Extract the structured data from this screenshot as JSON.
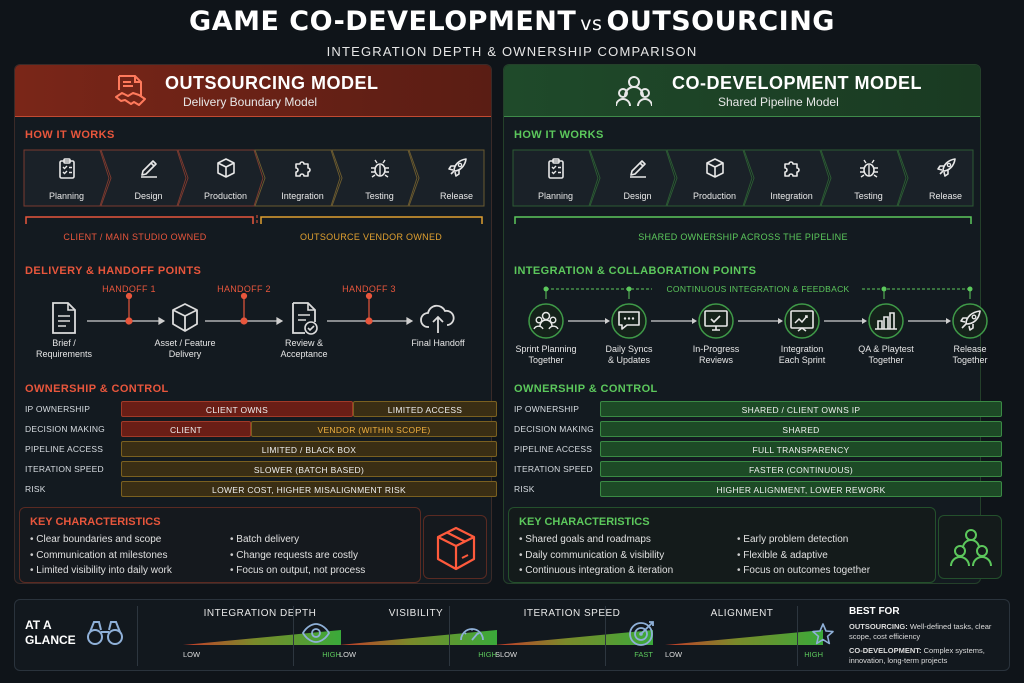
{
  "title": {
    "part1": "GAME CO-DEVELOPMENT",
    "vs": "vs",
    "part2": "OUTSOURCING"
  },
  "subtitle": "INTEGRATION DEPTH & OWNERSHIP COMPARISON",
  "colors": {
    "accent_red": "#e8563c",
    "accent_green": "#5cc85c",
    "accent_orange": "#e0a030",
    "bg": "#0f1419"
  },
  "left": {
    "title": "OUTSOURCING MODEL",
    "subtitle": "Delivery Boundary Model",
    "icon": "handshake-document-icon",
    "how_it_works": "HOW IT WORKS",
    "stages": [
      {
        "label": "Planning",
        "icon": "clipboard-icon"
      },
      {
        "label": "Design",
        "icon": "pencil-icon"
      },
      {
        "label": "Production",
        "icon": "cube-icon"
      },
      {
        "label": "Integration",
        "icon": "puzzle-icon"
      },
      {
        "label": "Testing",
        "icon": "bug-icon"
      },
      {
        "label": "Release",
        "icon": "rocket-icon"
      }
    ],
    "owner_client": "CLIENT / MAIN STUDIO OWNED",
    "owner_vendor": "OUTSOURCE VENDOR OWNED",
    "handoff_title": "DELIVERY & HANDOFF POINTS",
    "handoffs": [
      "HANDOFF 1",
      "HANDOFF 2",
      "HANDOFF 3"
    ],
    "handoff_nodes": [
      {
        "line1": "Brief /",
        "line2": "Requirements",
        "icon": "document-icon"
      },
      {
        "line1": "Asset / Feature",
        "line2": "Delivery",
        "icon": "cube-icon"
      },
      {
        "line1": "Review &",
        "line2": "Acceptance",
        "icon": "document-check-icon"
      },
      {
        "line1": "Final Handoff",
        "line2": "",
        "icon": "cloud-upload-icon"
      }
    ],
    "ownership_title": "OWNERSHIP & CONTROL",
    "ownership": [
      {
        "key": "IP OWNERSHIP",
        "a": "CLIENT OWNS",
        "b": "LIMITED ACCESS"
      },
      {
        "key": "DECISION MAKING",
        "a": "CLIENT",
        "b": "VENDOR (WITHIN SCOPE)"
      },
      {
        "key": "PIPELINE ACCESS",
        "a": "LIMITED / BLACK BOX",
        "b": ""
      },
      {
        "key": "ITERATION SPEED",
        "a": "SLOWER (BATCH BASED)",
        "b": ""
      },
      {
        "key": "RISK",
        "a": "LOWER COST, HIGHER MISALIGNMENT RISK",
        "b": ""
      }
    ],
    "key_title": "KEY CHARACTERISTICS",
    "key_col1": [
      "Clear boundaries and scope",
      "Communication at milestones",
      "Limited visibility into daily work"
    ],
    "key_col2": [
      "Batch delivery",
      "Change requests are costly",
      "Focus on output, not process"
    ],
    "key_icon": "box-icon"
  },
  "right": {
    "title": "CO-DEVELOPMENT MODEL",
    "subtitle": "Shared Pipeline Model",
    "icon": "team-icon",
    "how_it_works": "HOW IT WORKS",
    "stages": [
      {
        "label": "Planning",
        "icon": "clipboard-icon"
      },
      {
        "label": "Design",
        "icon": "pencil-icon"
      },
      {
        "label": "Production",
        "icon": "cube-icon"
      },
      {
        "label": "Integration",
        "icon": "puzzle-icon"
      },
      {
        "label": "Testing",
        "icon": "bug-icon"
      },
      {
        "label": "Release",
        "icon": "rocket-icon"
      }
    ],
    "owner_shared": "SHARED OWNERSHIP ACROSS THE PIPELINE",
    "collab_title": "INTEGRATION & COLLABORATION POINTS",
    "continuous": "CONTINUOUS INTEGRATION & FEEDBACK",
    "collab_nodes": [
      {
        "line1": "Sprint Planning",
        "line2": "Together",
        "icon": "team-icon"
      },
      {
        "line1": "Daily Syncs",
        "line2": "& Updates",
        "icon": "chat-icon"
      },
      {
        "line1": "In-Progress",
        "line2": "Reviews",
        "icon": "monitor-check-icon"
      },
      {
        "line1": "Integration",
        "line2": "Each Sprint",
        "icon": "board-icon"
      },
      {
        "line1": "QA & Playtest",
        "line2": "Together",
        "icon": "chart-icon"
      },
      {
        "line1": "Release",
        "line2": "Together",
        "icon": "rocket-icon"
      }
    ],
    "ownership_title": "OWNERSHIP & CONTROL",
    "ownership": [
      {
        "key": "IP OWNERSHIP",
        "a": "SHARED / CLIENT OWNS IP"
      },
      {
        "key": "DECISION MAKING",
        "a": "SHARED"
      },
      {
        "key": "PIPELINE ACCESS",
        "a": "FULL TRANSPARENCY"
      },
      {
        "key": "ITERATION SPEED",
        "a": "FASTER (CONTINUOUS)"
      },
      {
        "key": "RISK",
        "a": "HIGHER ALIGNMENT, LOWER REWORK"
      }
    ],
    "key_title": "KEY CHARACTERISTICS",
    "key_col1": [
      "Shared goals and roadmaps",
      "Daily communication & visibility",
      "Continuous integration & iteration"
    ],
    "key_col2": [
      "Early problem detection",
      "Flexible & adaptive",
      "Focus on outcomes together"
    ],
    "key_icon": "team-icon"
  },
  "glance": {
    "title_line1": "AT A",
    "title_line2": "GLANCE",
    "icon": "binoculars-icon",
    "metrics": [
      {
        "title": "INTEGRATION DEPTH",
        "low": "LOW",
        "high": "HIGH",
        "icon": ""
      },
      {
        "title": "VISIBILITY",
        "low": "LOW",
        "high": "HIGH",
        "icon": "eye-icon"
      },
      {
        "title": "ITERATION SPEED",
        "low": "SLOW",
        "high": "FAST",
        "icon": "gauge-icon"
      },
      {
        "title": "ALIGNMENT",
        "low": "LOW",
        "high": "HIGH",
        "icon": "target-icon"
      }
    ],
    "best_for_title": "BEST FOR",
    "best_out_label": "OUTSOURCING:",
    "best_out_text": "Well-defined tasks, clear scope, cost efficiency",
    "best_co_label": "CO-DEVELOPMENT:",
    "best_co_text": "Complex systems, innovation, long-term projects",
    "star_icon": "star-icon"
  }
}
